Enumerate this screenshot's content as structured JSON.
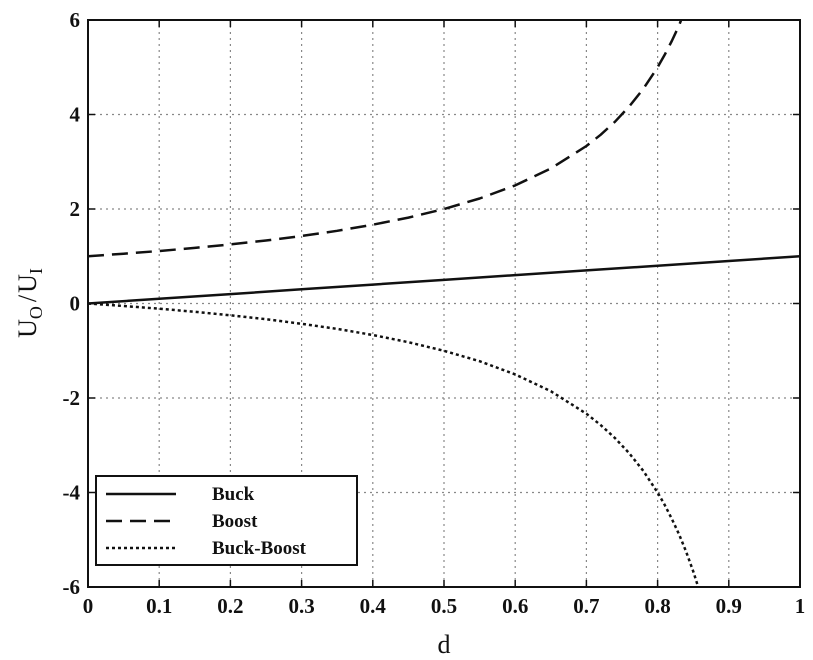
{
  "chart_data": {
    "type": "line",
    "xlabel": "d",
    "ylabel_main": "U",
    "ylabel_sub_num": "O",
    "ylabel_slash": "/",
    "ylabel_sub_den": "I",
    "xlim": [
      0,
      1
    ],
    "ylim": [
      -6,
      6
    ],
    "x_ticks": [
      0,
      0.1,
      0.2,
      0.3,
      0.4,
      0.5,
      0.6,
      0.7,
      0.8,
      0.9,
      1
    ],
    "x_tick_labels": [
      "0",
      "0.1",
      "0.2",
      "0.3",
      "0.4",
      "0.5",
      "0.6",
      "0.7",
      "0.8",
      "0.9",
      "1"
    ],
    "y_ticks": [
      -6,
      -4,
      -2,
      0,
      2,
      4,
      6
    ],
    "y_tick_labels": [
      "-6",
      "-4",
      "-2",
      "0",
      "2",
      "4",
      "6"
    ],
    "grid": true,
    "legend_position": "bottom-left",
    "series": [
      {
        "name": "Buck",
        "style": "solid",
        "x": [
          0,
          0.1,
          0.2,
          0.3,
          0.4,
          0.5,
          0.6,
          0.7,
          0.8,
          0.9,
          1.0
        ],
        "y": [
          0,
          0.1,
          0.2,
          0.3,
          0.4,
          0.5,
          0.6,
          0.7,
          0.8,
          0.9,
          1.0
        ]
      },
      {
        "name": "Boost",
        "style": "dashed",
        "x": [
          0,
          0.05,
          0.1,
          0.15,
          0.2,
          0.25,
          0.3,
          0.35,
          0.4,
          0.45,
          0.5,
          0.55,
          0.6,
          0.65,
          0.7,
          0.72,
          0.74,
          0.76,
          0.78,
          0.8,
          0.81,
          0.82,
          0.83,
          0.833
        ],
        "y": [
          1.0,
          1.053,
          1.111,
          1.176,
          1.25,
          1.333,
          1.429,
          1.538,
          1.667,
          1.818,
          2.0,
          2.222,
          2.5,
          2.857,
          3.333,
          3.571,
          3.846,
          4.167,
          4.545,
          5.0,
          5.263,
          5.556,
          5.882,
          6.0
        ]
      },
      {
        "name": "Buck-Boost",
        "style": "dotted",
        "x": [
          0,
          0.05,
          0.1,
          0.15,
          0.2,
          0.25,
          0.3,
          0.35,
          0.4,
          0.45,
          0.5,
          0.55,
          0.6,
          0.65,
          0.7,
          0.72,
          0.74,
          0.76,
          0.78,
          0.8,
          0.81,
          0.82,
          0.83,
          0.84,
          0.85,
          0.857
        ],
        "y": [
          0,
          -0.053,
          -0.111,
          -0.176,
          -0.25,
          -0.333,
          -0.429,
          -0.538,
          -0.667,
          -0.818,
          -1.0,
          -1.222,
          -1.5,
          -1.857,
          -2.333,
          -2.571,
          -2.846,
          -3.167,
          -3.545,
          -4.0,
          -4.263,
          -4.556,
          -4.882,
          -5.25,
          -5.667,
          -6.0
        ]
      }
    ]
  }
}
